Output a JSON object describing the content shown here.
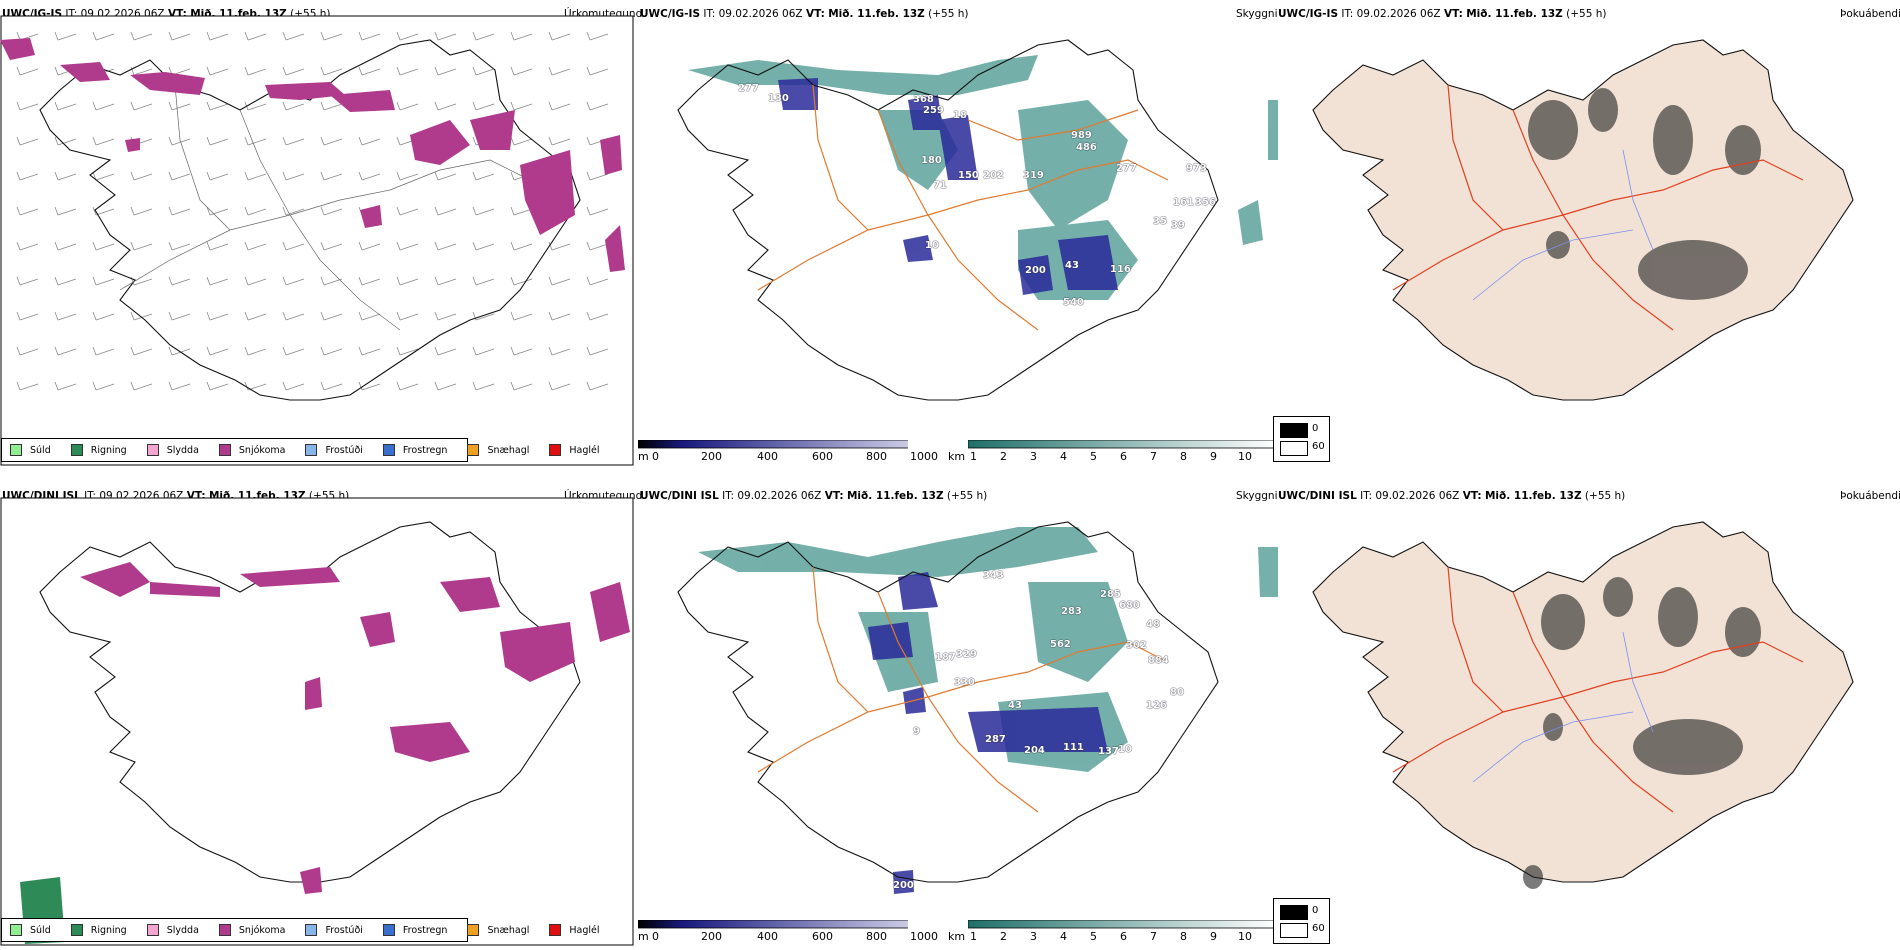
{
  "rows": [
    {
      "model": "UWC/IG-IS",
      "init": "IT: 09.02.2026 06Z",
      "valid_label": "VT:",
      "valid": "Mið. 11.feb. 13Z",
      "lead": "(+55 h)",
      "precip_title": "Úrkomutegund",
      "cloud_title": "Skyggni",
      "cover_title": "Þokuábendi",
      "cloud_labels": [
        "277",
        "130",
        "368",
        "259",
        "18",
        "180",
        "71",
        "150",
        "202",
        "319",
        "989",
        "486",
        "277",
        "973",
        "161",
        "356",
        "35",
        "39",
        "10",
        "200",
        "43",
        "116",
        "540"
      ]
    },
    {
      "model": "UWC/DINI ISL",
      "init": "IT: 09.02.2026 06Z",
      "valid_label": "VT:",
      "valid": "Mið. 11.feb. 13Z",
      "lead": "(+55 h)",
      "precip_title": "Úrkomutegund",
      "cloud_title": "Skyggni",
      "cover_title": "Þokuábendi",
      "cloud_labels": [
        "343",
        "285",
        "680",
        "283",
        "48",
        "562",
        "302",
        "884",
        "187",
        "329",
        "330",
        "43",
        "80",
        "126",
        "287",
        "204",
        "111",
        "137",
        "10",
        "9",
        "200"
      ]
    }
  ],
  "precip_legend": [
    {
      "label": "Súld",
      "color": "#90ee90"
    },
    {
      "label": "Rigning",
      "color": "#2e8b57"
    },
    {
      "label": "Slydda",
      "color": "#f4a6d0"
    },
    {
      "label": "Snjókoma",
      "color": "#b03a8c"
    },
    {
      "label": "Frostúði",
      "color": "#87b5ea"
    },
    {
      "label": "Frostregn",
      "color": "#3a6fcf"
    },
    {
      "label": "Snæhagl",
      "color": "#f0a020"
    },
    {
      "label": "Haglél",
      "color": "#e01010"
    }
  ],
  "height_bar": {
    "unit": "m",
    "ticks": [
      "0",
      "200",
      "400",
      "600",
      "800",
      "1000"
    ]
  },
  "vis_bar": {
    "unit": "km",
    "ticks": [
      "1",
      "2",
      "3",
      "4",
      "5",
      "6",
      "7",
      "8",
      "9",
      "10"
    ]
  },
  "fog_legend": {
    "low": "0",
    "high": "60"
  },
  "colors": {
    "snow": "#b03a8c",
    "rain": "#2e8b57",
    "cloud_teal": "#3a8f86",
    "cloud_blue": "#2a2a9a",
    "roads": "#e07a30",
    "land": "#f2e2d6"
  }
}
